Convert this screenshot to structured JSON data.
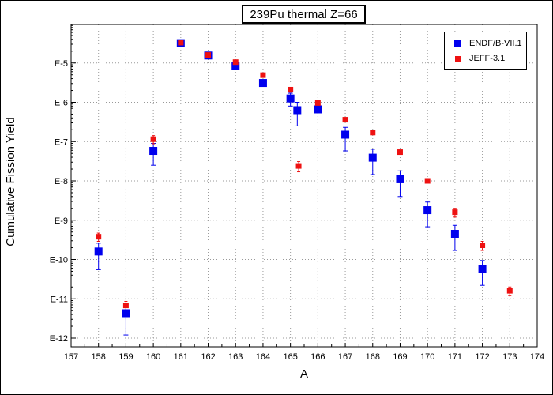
{
  "chart_data": {
    "type": "scatter",
    "title": "239Pu thermal Z=66",
    "xlabel": "A",
    "ylabel": "Cumulative Fission Yield",
    "xlim": [
      157,
      174
    ],
    "ylim": [
      1e-12,
      0.0001
    ],
    "y_scale": "log",
    "grid": true,
    "legend_position": "top-right",
    "x_ticks": [
      157,
      158,
      159,
      160,
      161,
      162,
      163,
      164,
      165,
      166,
      167,
      168,
      169,
      170,
      171,
      172,
      173,
      174
    ],
    "x_tick_labels": [
      "157",
      "158",
      "159",
      "160",
      "161",
      "162",
      "163",
      "164",
      "165",
      "166",
      "167",
      "168",
      "169",
      "170",
      "171",
      "172",
      "173",
      "174"
    ],
    "y_ticks": [
      1e-12,
      1e-11,
      1e-10,
      1e-09,
      1e-08,
      1e-07,
      1e-06,
      1e-05
    ],
    "y_tick_labels": [
      "E-12",
      "E-11",
      "E-10",
      "E-9",
      "E-8",
      "E-7",
      "E-6",
      "E-5"
    ],
    "series": [
      {
        "name": "ENDF/B-VII.1",
        "color": "#0000ee",
        "marker": "square-large",
        "points": [
          {
            "x": 158,
            "y": 1.6e-10,
            "lo": 5.5e-11,
            "hi": 2.6e-10
          },
          {
            "x": 159,
            "y": 4.3e-12,
            "lo": 1.2e-12,
            "hi": 6.8e-12
          },
          {
            "x": 160,
            "y": 5.8e-08,
            "lo": 2.5e-08,
            "hi": 9e-08
          },
          {
            "x": 161,
            "y": 3.2e-05,
            "lo": 3e-05,
            "hi": 3.4e-05
          },
          {
            "x": 162,
            "y": 1.55e-05,
            "lo": 1.45e-05,
            "hi": 1.65e-05
          },
          {
            "x": 163,
            "y": 8.6e-06,
            "lo": 7.5e-06,
            "hi": 9.6e-06
          },
          {
            "x": 164,
            "y": 3.1e-06,
            "lo": 2.6e-06,
            "hi": 3.6e-06
          },
          {
            "x": 165,
            "y": 1.25e-06,
            "lo": 8e-07,
            "hi": 1.7e-06
          },
          {
            "x": 165.25,
            "y": 6.3e-07,
            "lo": 2.5e-07,
            "hi": 1e-06
          },
          {
            "x": 166,
            "y": 6.6e-07,
            "lo": 6e-07,
            "hi": 7.2e-07
          },
          {
            "x": 167,
            "y": 1.5e-07,
            "lo": 5.8e-08,
            "hi": 2.3e-07
          },
          {
            "x": 168,
            "y": 3.9e-08,
            "lo": 1.45e-08,
            "hi": 6.4e-08
          },
          {
            "x": 169,
            "y": 1.1e-08,
            "lo": 4e-09,
            "hi": 1.8e-08
          },
          {
            "x": 170,
            "y": 1.8e-09,
            "lo": 6.8e-10,
            "hi": 2.9e-09
          },
          {
            "x": 171,
            "y": 4.5e-10,
            "lo": 1.7e-10,
            "hi": 7.4e-10
          },
          {
            "x": 172,
            "y": 5.8e-11,
            "lo": 2.2e-11,
            "hi": 9.4e-11
          }
        ]
      },
      {
        "name": "JEFF-3.1",
        "color": "#ee1111",
        "marker": "square-small",
        "points": [
          {
            "x": 158,
            "y": 3.8e-10,
            "lo": 2.9e-10,
            "hi": 4.7e-10
          },
          {
            "x": 159,
            "y": 6.8e-12,
            "lo": 5e-12,
            "hi": 8.6e-12
          },
          {
            "x": 160,
            "y": 1.15e-07,
            "lo": 8.8e-08,
            "hi": 1.42e-07
          },
          {
            "x": 161,
            "y": 3.3e-05,
            "lo": 3.15e-05,
            "hi": 3.45e-05
          },
          {
            "x": 162,
            "y": 1.6e-05,
            "lo": 1.52e-05,
            "hi": 1.68e-05
          },
          {
            "x": 163,
            "y": 1.05e-05,
            "lo": 9.6e-06,
            "hi": 1.14e-05
          },
          {
            "x": 164,
            "y": 4.9e-06,
            "lo": 4.4e-06,
            "hi": 5.4e-06
          },
          {
            "x": 165,
            "y": 2.1e-06,
            "lo": 1.8e-06,
            "hi": 2.4e-06
          },
          {
            "x": 165.3,
            "y": 2.4e-08,
            "lo": 1.7e-08,
            "hi": 3.1e-08
          },
          {
            "x": 166,
            "y": 9.6e-07,
            "lo": 8.6e-07,
            "hi": 1.06e-06
          },
          {
            "x": 167,
            "y": 3.6e-07,
            "lo": 3.2e-07,
            "hi": 4e-07
          },
          {
            "x": 168,
            "y": 1.7e-07,
            "lo": 1.5e-07,
            "hi": 1.9e-07
          },
          {
            "x": 169,
            "y": 5.4e-08,
            "lo": 4.8e-08,
            "hi": 6e-08
          },
          {
            "x": 170,
            "y": 1e-08,
            "lo": 8.8e-09,
            "hi": 1.12e-08
          },
          {
            "x": 171,
            "y": 1.6e-09,
            "lo": 1.2e-09,
            "hi": 2e-09
          },
          {
            "x": 172,
            "y": 2.3e-10,
            "lo": 1.7e-10,
            "hi": 2.9e-10
          },
          {
            "x": 173,
            "y": 1.6e-11,
            "lo": 1.2e-11,
            "hi": 2e-11
          }
        ]
      }
    ]
  }
}
